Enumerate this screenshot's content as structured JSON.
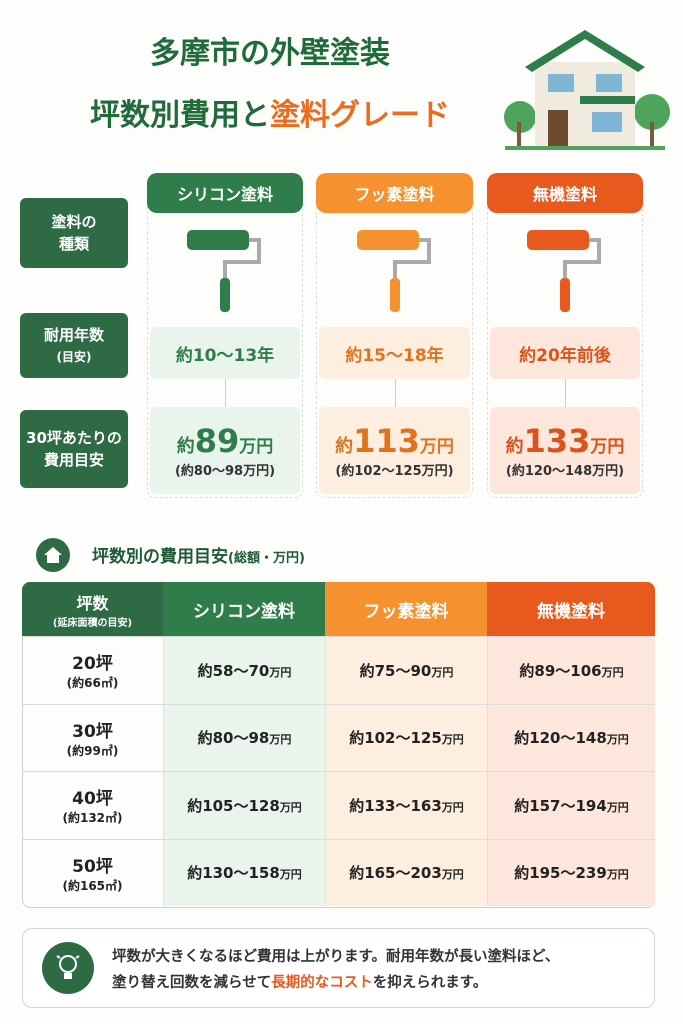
{
  "header": {
    "title_line1": "多摩市の外壁塗装",
    "title_line2_a": "坪数別費用と",
    "title_line2_b": "塗料グレード"
  },
  "comparison": {
    "row_labels": [
      {
        "label": "塗料の\n種類"
      },
      {
        "label": "耐用年数",
        "sub": "(目安)"
      },
      {
        "label": "30坪あたりの\n費用目安"
      }
    ],
    "grades": [
      {
        "name": "シリコン塗料",
        "durability": "約10〜13年",
        "price_prefix": "約",
        "price_amount": "89",
        "price_unit": "万円",
        "range": "(約80〜98万円)"
      },
      {
        "name": "フッ素塗料",
        "durability": "約15〜18年",
        "price_prefix": "約",
        "price_amount": "113",
        "price_unit": "万円",
        "range": "(約102〜125万円)"
      },
      {
        "name": "無機塗料",
        "durability": "約20年前後",
        "price_prefix": "約",
        "price_amount": "133",
        "price_unit": "万円",
        "range": "(約120〜148万円)"
      }
    ]
  },
  "table": {
    "title": "坪数別の費用目安",
    "title_note": "(総額・万円)",
    "header_label": "坪数",
    "header_sub": "(延床面積の目安)",
    "columns": [
      "シリコン塗料",
      "フッ素塗料",
      "無機塗料"
    ],
    "rows": [
      {
        "tsubo": "20坪",
        "area": "(約66㎡)",
        "cells": [
          {
            "range": "約58〜70",
            "unit": "万円"
          },
          {
            "range": "約75〜90",
            "unit": "万円"
          },
          {
            "range": "約89〜106",
            "unit": "万円"
          }
        ]
      },
      {
        "tsubo": "30坪",
        "area": "(約99㎡)",
        "cells": [
          {
            "range": "約80〜98",
            "unit": "万円"
          },
          {
            "range": "約102〜125",
            "unit": "万円"
          },
          {
            "range": "約120〜148",
            "unit": "万円"
          }
        ]
      },
      {
        "tsubo": "40坪",
        "area": "(約132㎡)",
        "cells": [
          {
            "range": "約105〜128",
            "unit": "万円"
          },
          {
            "range": "約133〜163",
            "unit": "万円"
          },
          {
            "range": "約157〜194",
            "unit": "万円"
          }
        ]
      },
      {
        "tsubo": "50坪",
        "area": "(約165㎡)",
        "cells": [
          {
            "range": "約130〜158",
            "unit": "万円"
          },
          {
            "range": "約165〜203",
            "unit": "万円"
          },
          {
            "range": "約195〜239",
            "unit": "万円"
          }
        ]
      }
    ]
  },
  "note": {
    "line1": "坪数が大きくなるほど費用は上がります。耐用年数が長い塗料ほど、",
    "line2_a": "塗り替え回数を減らせて",
    "line2_b": "長期的なコスト",
    "line2_c": "を抑えられます。"
  }
}
